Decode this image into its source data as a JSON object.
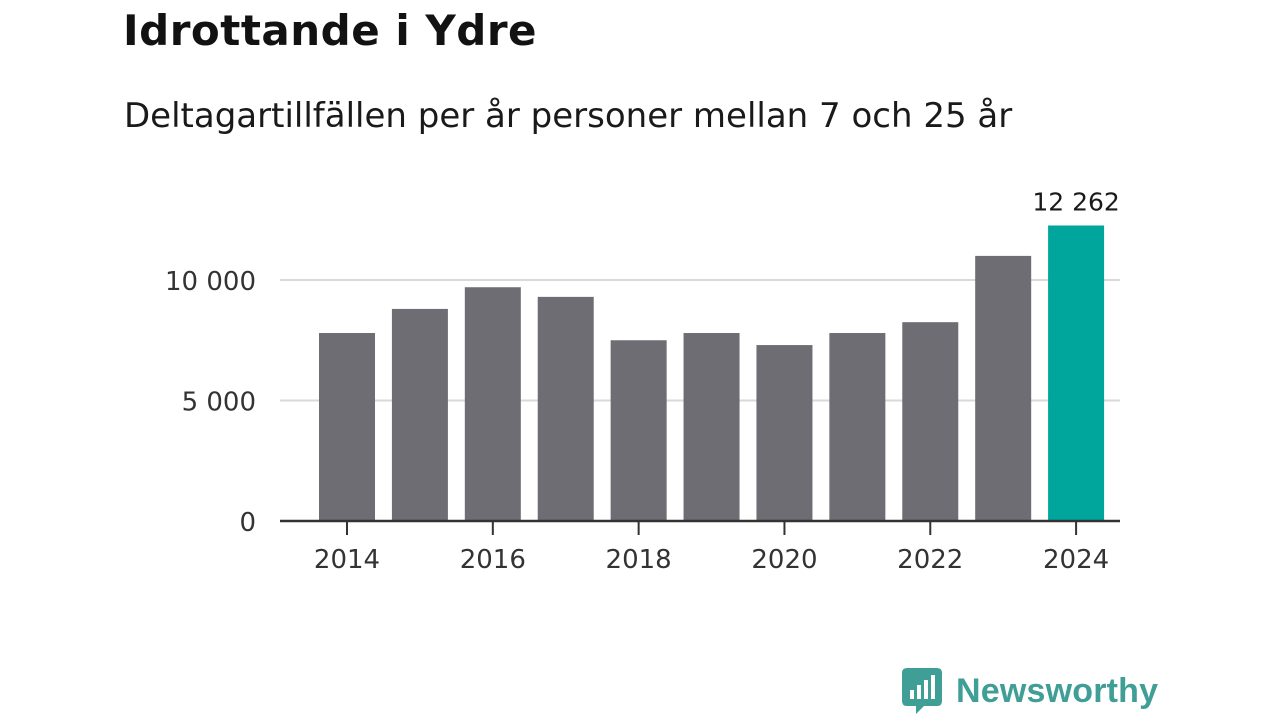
{
  "title": "Idrottande i Ydre",
  "subtitle": "Deltagartillfällen per år personer mellan 7 och 25 år",
  "brand": {
    "name": "Newsworthy",
    "color": "#3f9e96"
  },
  "colors": {
    "bar": "#6e6d74",
    "highlight": "#00a69c",
    "grid": "#d9d9d9",
    "axis": "#333333"
  },
  "chart_data": {
    "type": "bar",
    "title": "Idrottande i Ydre",
    "subtitle": "Deltagartillfällen per år personer mellan 7 och 25 år",
    "xlabel": "",
    "ylabel": "",
    "categories": [
      "2014",
      "2015",
      "2016",
      "2017",
      "2018",
      "2019",
      "2020",
      "2021",
      "2022",
      "2023",
      "2024"
    ],
    "values": [
      7800,
      8800,
      9700,
      9300,
      7500,
      7800,
      7300,
      7800,
      8250,
      11000,
      12262
    ],
    "highlight_index": 10,
    "data_labels": [
      {
        "index": 10,
        "text": "12 262"
      }
    ],
    "ylim": [
      0,
      12262
    ],
    "yticks": [
      0,
      5000,
      10000
    ],
    "ytick_labels": [
      "0",
      "5 000",
      "10 000"
    ],
    "xtick_labels": [
      "2014",
      "2016",
      "2018",
      "2020",
      "2022",
      "2024"
    ],
    "grid": true
  }
}
